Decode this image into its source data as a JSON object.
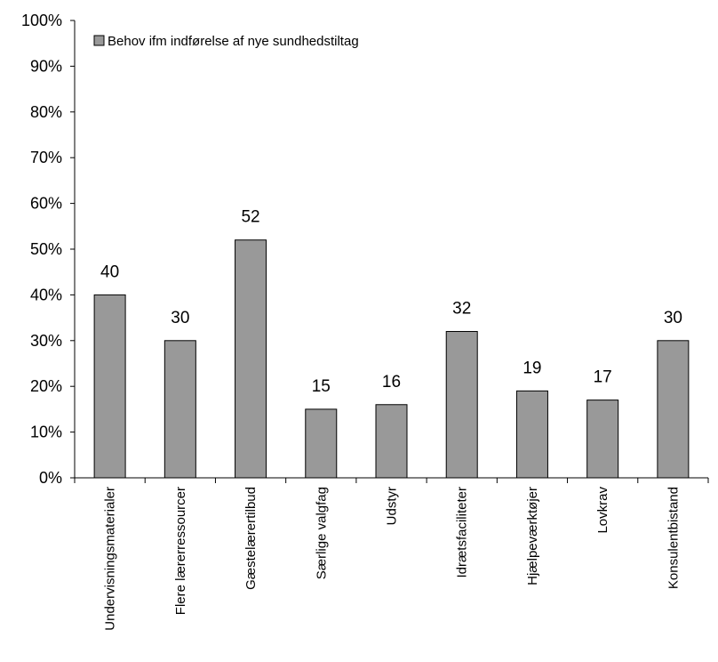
{
  "chart_data": {
    "type": "bar",
    "categories": [
      "Undervisningsmaterialer",
      "Flere lærerressourcer",
      "Gæstelærertilbud",
      "Særlige valgfag",
      "Udstyr",
      "Idrætsfaciliteter",
      "Hjælpeværktøjer",
      "Lovkrav",
      "Konsulentbistand"
    ],
    "series": [
      {
        "name": "Behov ifm indførelse af nye sundhedstiltag",
        "values": [
          40,
          30,
          52,
          15,
          16,
          32,
          19,
          17,
          30
        ]
      }
    ],
    "data_labels": [
      "40",
      "30",
      "52",
      "15",
      "16",
      "32",
      "19",
      "17",
      "30"
    ],
    "y_ticks": [
      "0%",
      "10%",
      "20%",
      "30%",
      "40%",
      "50%",
      "60%",
      "70%",
      "80%",
      "90%",
      "100%"
    ],
    "ylim": [
      0,
      100
    ],
    "legend_position": "top-left",
    "bar_color": "#999999",
    "grid": false
  }
}
